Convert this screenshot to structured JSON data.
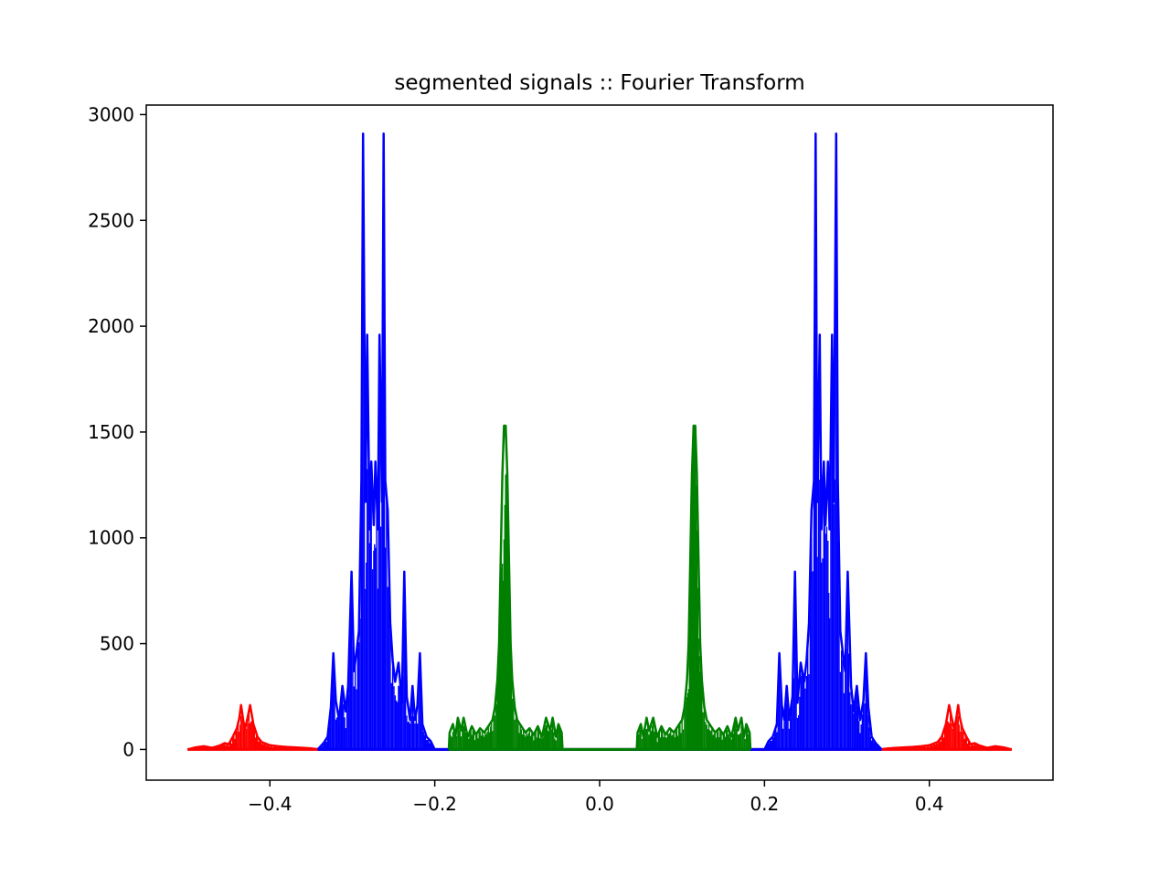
{
  "chart_data": {
    "type": "line",
    "title": "segmented signals :: Fourier Transform",
    "xlabel": "",
    "ylabel": "",
    "xlim": [
      -0.55,
      0.55
    ],
    "ylim": [
      -145,
      3045
    ],
    "grid": false,
    "x_ticks": [
      -0.4,
      -0.2,
      0.0,
      0.2,
      0.4
    ],
    "x_tick_labels": [
      "−0.4",
      "−0.2",
      "0.0",
      "0.2",
      "0.4"
    ],
    "y_ticks": [
      0,
      500,
      1000,
      1500,
      2000,
      2500,
      3000
    ],
    "y_tick_labels": [
      "0",
      "500",
      "1000",
      "1500",
      "2000",
      "2500",
      "3000"
    ],
    "series": [
      {
        "color": "#ff0000",
        "x_range": [
          -0.5,
          0.5
        ],
        "points": [
          [
            -0.5,
            0
          ],
          [
            -0.49,
            10
          ],
          [
            -0.48,
            15
          ],
          [
            -0.47,
            8
          ],
          [
            -0.46,
            20
          ],
          [
            -0.455,
            30
          ],
          [
            -0.45,
            25
          ],
          [
            -0.445,
            60
          ],
          [
            -0.44,
            100
          ],
          [
            -0.437,
            150
          ],
          [
            -0.435,
            210
          ],
          [
            -0.432,
            130
          ],
          [
            -0.43,
            100
          ],
          [
            -0.427,
            150
          ],
          [
            -0.424,
            210
          ],
          [
            -0.42,
            120
          ],
          [
            -0.415,
            60
          ],
          [
            -0.41,
            35
          ],
          [
            -0.4,
            20
          ],
          [
            -0.39,
            15
          ],
          [
            -0.38,
            12
          ],
          [
            -0.37,
            10
          ],
          [
            -0.36,
            8
          ],
          [
            -0.35,
            5
          ],
          [
            -0.34,
            0
          ],
          [
            0.34,
            0
          ],
          [
            0.35,
            5
          ],
          [
            0.36,
            8
          ],
          [
            0.37,
            10
          ],
          [
            0.38,
            12
          ],
          [
            0.39,
            15
          ],
          [
            0.4,
            20
          ],
          [
            0.41,
            35
          ],
          [
            0.415,
            60
          ],
          [
            0.42,
            120
          ],
          [
            0.424,
            210
          ],
          [
            0.427,
            150
          ],
          [
            0.43,
            100
          ],
          [
            0.432,
            130
          ],
          [
            0.435,
            210
          ],
          [
            0.437,
            150
          ],
          [
            0.44,
            100
          ],
          [
            0.445,
            60
          ],
          [
            0.45,
            25
          ],
          [
            0.455,
            30
          ],
          [
            0.46,
            20
          ],
          [
            0.47,
            8
          ],
          [
            0.48,
            15
          ],
          [
            0.49,
            10
          ],
          [
            0.5,
            0
          ]
        ]
      },
      {
        "color": "#0000ff",
        "x_range": [
          -0.342,
          0.342
        ],
        "points": [
          [
            -0.342,
            0
          ],
          [
            -0.335,
            30
          ],
          [
            -0.33,
            60
          ],
          [
            -0.326,
            200
          ],
          [
            -0.323,
            455
          ],
          [
            -0.32,
            230
          ],
          [
            -0.316,
            140
          ],
          [
            -0.312,
            300
          ],
          [
            -0.308,
            180
          ],
          [
            -0.305,
            300
          ],
          [
            -0.301,
            840
          ],
          [
            -0.298,
            370
          ],
          [
            -0.295,
            460
          ],
          [
            -0.292,
            560
          ],
          [
            -0.289,
            1270
          ],
          [
            -0.287,
            2910
          ],
          [
            -0.284,
            1170
          ],
          [
            -0.282,
            1960
          ],
          [
            -0.279,
            1040
          ],
          [
            -0.277,
            1360
          ],
          [
            -0.274,
            1060
          ],
          [
            -0.272,
            1360
          ],
          [
            -0.269,
            1040
          ],
          [
            -0.267,
            1960
          ],
          [
            -0.264,
            1170
          ],
          [
            -0.262,
            2910
          ],
          [
            -0.26,
            1270
          ],
          [
            -0.257,
            1130
          ],
          [
            -0.254,
            600
          ],
          [
            -0.251,
            420
          ],
          [
            -0.248,
            320
          ],
          [
            -0.244,
            410
          ],
          [
            -0.24,
            220
          ],
          [
            -0.237,
            840
          ],
          [
            -0.234,
            250
          ],
          [
            -0.23,
            140
          ],
          [
            -0.227,
            300
          ],
          [
            -0.224,
            140
          ],
          [
            -0.221,
            210
          ],
          [
            -0.218,
            455
          ],
          [
            -0.215,
            120
          ],
          [
            -0.21,
            60
          ],
          [
            -0.205,
            40
          ],
          [
            -0.2,
            0
          ],
          [
            0.2,
            0
          ],
          [
            0.205,
            40
          ],
          [
            0.21,
            60
          ],
          [
            0.215,
            120
          ],
          [
            0.218,
            455
          ],
          [
            0.221,
            210
          ],
          [
            0.224,
            140
          ],
          [
            0.227,
            300
          ],
          [
            0.23,
            140
          ],
          [
            0.234,
            250
          ],
          [
            0.237,
            840
          ],
          [
            0.24,
            220
          ],
          [
            0.244,
            410
          ],
          [
            0.248,
            320
          ],
          [
            0.251,
            420
          ],
          [
            0.254,
            600
          ],
          [
            0.257,
            1130
          ],
          [
            0.26,
            1270
          ],
          [
            0.262,
            2910
          ],
          [
            0.264,
            1170
          ],
          [
            0.267,
            1960
          ],
          [
            0.269,
            1040
          ],
          [
            0.272,
            1360
          ],
          [
            0.274,
            1060
          ],
          [
            0.277,
            1360
          ],
          [
            0.279,
            1040
          ],
          [
            0.282,
            1960
          ],
          [
            0.284,
            1170
          ],
          [
            0.287,
            2910
          ],
          [
            0.289,
            1270
          ],
          [
            0.292,
            560
          ],
          [
            0.295,
            460
          ],
          [
            0.298,
            370
          ],
          [
            0.301,
            840
          ],
          [
            0.305,
            300
          ],
          [
            0.308,
            180
          ],
          [
            0.312,
            300
          ],
          [
            0.316,
            140
          ],
          [
            0.32,
            230
          ],
          [
            0.323,
            455
          ],
          [
            0.326,
            200
          ],
          [
            0.33,
            60
          ],
          [
            0.335,
            30
          ],
          [
            0.342,
            0
          ]
        ]
      },
      {
        "color": "#008000",
        "x_range": [
          -0.183,
          0.183
        ],
        "points": [
          [
            -0.183,
            0
          ],
          [
            -0.182,
            80
          ],
          [
            -0.178,
            120
          ],
          [
            -0.175,
            60
          ],
          [
            -0.172,
            150
          ],
          [
            -0.168,
            90
          ],
          [
            -0.165,
            150
          ],
          [
            -0.16,
            60
          ],
          [
            -0.155,
            110
          ],
          [
            -0.15,
            70
          ],
          [
            -0.145,
            100
          ],
          [
            -0.14,
            80
          ],
          [
            -0.135,
            110
          ],
          [
            -0.13,
            140
          ],
          [
            -0.127,
            200
          ],
          [
            -0.124,
            330
          ],
          [
            -0.122,
            500
          ],
          [
            -0.12,
            900
          ],
          [
            -0.118,
            1300
          ],
          [
            -0.116,
            1530
          ],
          [
            -0.114,
            1530
          ],
          [
            -0.112,
            1300
          ],
          [
            -0.11,
            900
          ],
          [
            -0.108,
            500
          ],
          [
            -0.106,
            330
          ],
          [
            -0.103,
            200
          ],
          [
            -0.1,
            140
          ],
          [
            -0.095,
            110
          ],
          [
            -0.09,
            80
          ],
          [
            -0.085,
            100
          ],
          [
            -0.08,
            70
          ],
          [
            -0.075,
            110
          ],
          [
            -0.07,
            60
          ],
          [
            -0.065,
            150
          ],
          [
            -0.06,
            90
          ],
          [
            -0.057,
            150
          ],
          [
            -0.053,
            60
          ],
          [
            -0.05,
            120
          ],
          [
            -0.046,
            80
          ],
          [
            -0.045,
            0
          ],
          [
            0.045,
            0
          ],
          [
            0.046,
            80
          ],
          [
            0.05,
            120
          ],
          [
            0.053,
            60
          ],
          [
            0.057,
            150
          ],
          [
            0.06,
            90
          ],
          [
            0.065,
            150
          ],
          [
            0.07,
            60
          ],
          [
            0.075,
            110
          ],
          [
            0.08,
            70
          ],
          [
            0.085,
            100
          ],
          [
            0.09,
            80
          ],
          [
            0.095,
            110
          ],
          [
            0.1,
            140
          ],
          [
            0.103,
            200
          ],
          [
            0.106,
            330
          ],
          [
            0.108,
            500
          ],
          [
            0.11,
            900
          ],
          [
            0.112,
            1300
          ],
          [
            0.114,
            1530
          ],
          [
            0.116,
            1530
          ],
          [
            0.118,
            1300
          ],
          [
            0.12,
            900
          ],
          [
            0.122,
            500
          ],
          [
            0.124,
            330
          ],
          [
            0.127,
            200
          ],
          [
            0.13,
            140
          ],
          [
            0.135,
            110
          ],
          [
            0.14,
            80
          ],
          [
            0.145,
            100
          ],
          [
            0.15,
            70
          ],
          [
            0.155,
            110
          ],
          [
            0.16,
            60
          ],
          [
            0.165,
            150
          ],
          [
            0.168,
            90
          ],
          [
            0.172,
            150
          ],
          [
            0.175,
            60
          ],
          [
            0.178,
            120
          ],
          [
            0.182,
            80
          ],
          [
            0.183,
            0
          ]
        ]
      }
    ]
  }
}
